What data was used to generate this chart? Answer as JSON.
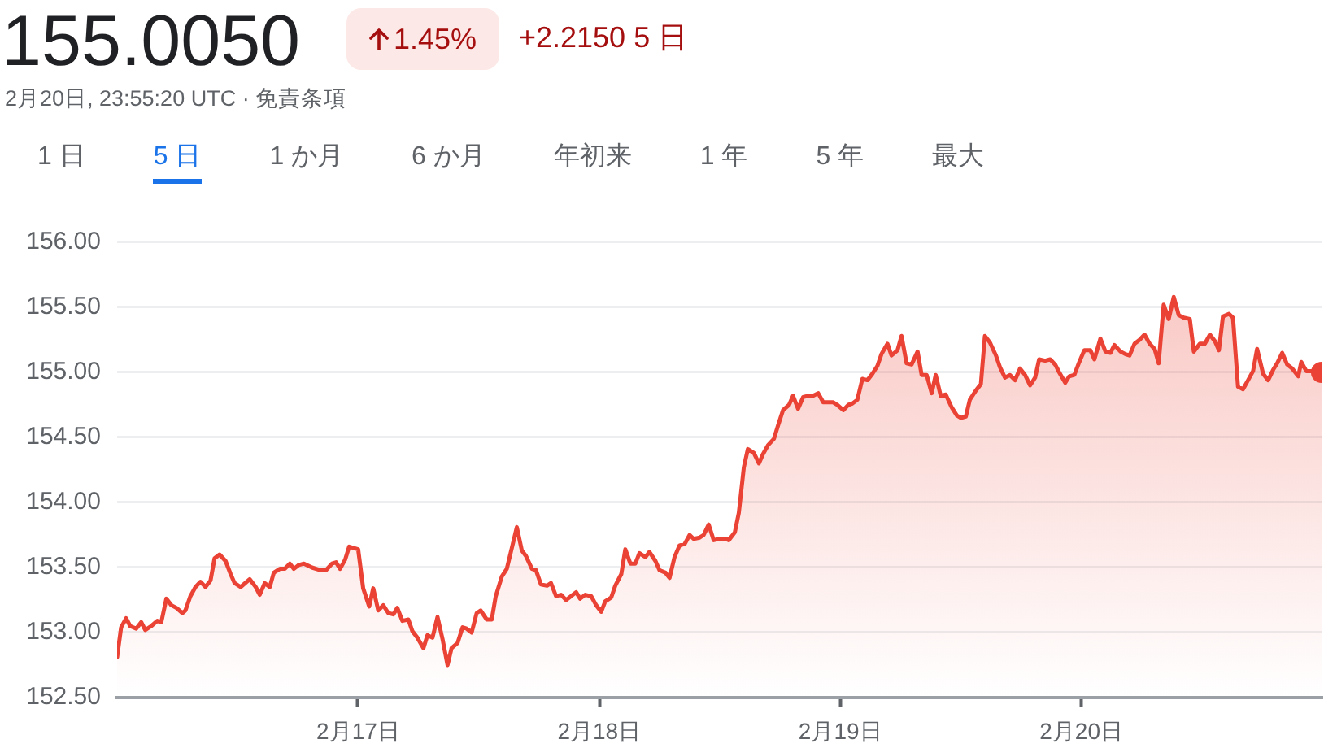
{
  "chart_data": {
    "type": "area",
    "title": "155.0050",
    "subtitle": "2月20日, 23:55:20 UTC · 免責条項",
    "annotations": [
      "1.45%",
      "+2.2150 5 日",
      "1 日",
      "5 日",
      "1 か月",
      "6 か月",
      "年初来",
      "1 年",
      "5 年",
      "最大"
    ],
    "x": [
      "--02-16T00:00",
      "--02-16T00:24",
      "--02-16T00:54",
      "--02-16T01:18",
      "--02-16T01:54",
      "--02-16T02:24",
      "--02-16T02:48",
      "--02-16T03:24",
      "--02-16T04:00",
      "--02-16T04:24",
      "--02-16T04:54",
      "--02-16T05:24",
      "--02-16T05:54",
      "--02-16T06:30",
      "--02-16T06:48",
      "--02-16T07:18",
      "--02-16T07:48",
      "--02-16T08:18",
      "--02-16T08:48",
      "--02-16T09:18",
      "--02-16T09:42",
      "--02-16T10:12",
      "--02-16T10:48",
      "--02-16T11:18",
      "--02-16T11:42",
      "--02-16T12:18",
      "--02-16T13:12",
      "--02-16T13:48",
      "--02-16T14:12",
      "--02-16T14:42",
      "--02-16T15:12",
      "--02-16T15:36",
      "--02-16T16:12",
      "--02-16T16:42",
      "--02-16T17:12",
      "--02-16T17:36",
      "--02-16T18:06",
      "--02-16T18:36",
      "--02-16T19:24",
      "--02-16T20:12",
      "--02-16T20:48",
      "--02-16T21:24",
      "--02-16T21:48",
      "--02-16T22:12",
      "--02-16T22:42",
      "--02-16T23:06",
      "--02-17T00:00",
      "--02-17T00:30",
      "--02-17T01:06",
      "--02-17T01:30",
      "--02-17T02:00",
      "--02-17T02:30",
      "--02-17T03:00",
      "--02-17T03:30",
      "--02-17T03:54",
      "--02-17T04:24",
      "--02-17T05:00",
      "--02-17T05:24",
      "--02-17T05:54",
      "--02-17T06:30",
      "--02-17T06:54",
      "--02-17T07:24",
      "--02-17T07:54",
      "--02-17T08:24",
      "--02-17T08:54",
      "--02-17T09:18",
      "--02-17T09:54",
      "--02-17T10:24",
      "--02-17T10:48",
      "--02-17T11:18",
      "--02-17T11:48",
      "--02-17T12:12",
      "--02-17T12:48",
      "--02-17T13:18",
      "--02-17T13:42",
      "--02-17T14:18",
      "--02-17T14:48",
      "--02-17T15:18",
      "--02-17T15:48",
      "--02-17T16:18",
      "--02-17T16:42",
      "--02-17T17:18",
      "--02-17T17:42",
      "--02-17T18:12",
      "--02-17T18:48",
      "--02-17T19:12",
      "--02-17T19:42",
      "--02-17T20:12",
      "--02-17T20:42",
      "--02-17T21:12",
      "--02-17T21:42",
      "--02-17T22:06",
      "--02-17T22:36",
      "--02-17T23:12",
      "--02-17T23:42",
      "--02-18T00:12",
      "--02-18T00:36",
      "--02-18T01:12",
      "--02-18T01:36",
      "--02-18T02:12",
      "--02-18T02:36",
      "--02-18T03:06",
      "--02-18T03:36",
      "--02-18T04:00",
      "--02-18T04:36",
      "--02-18T05:00",
      "--02-18T05:36",
      "--02-18T06:00",
      "--02-18T06:36",
      "--02-18T07:00",
      "--02-18T07:30",
      "--02-18T08:00",
      "--02-18T08:30",
      "--02-18T09:00",
      "--02-18T09:24",
      "--02-18T10:00",
      "--02-18T10:24",
      "--02-18T10:54",
      "--02-18T11:24",
      "--02-18T12:00",
      "--02-18T12:36",
      "--02-18T12:54",
      "--02-18T13:30",
      "--02-18T13:54",
      "--02-18T14:24",
      "--02-18T14:48",
      "--02-18T15:24",
      "--02-18T15:54",
      "--02-18T16:18",
      "--02-18T16:48",
      "--02-18T17:24",
      "--02-18T17:48",
      "--02-18T18:18",
      "--02-18T18:54",
      "--02-18T19:18",
      "--02-18T19:48",
      "--02-18T20:18",
      "--02-18T20:48",
      "--02-18T21:18",
      "--02-18T21:48",
      "--02-18T22:18",
      "--02-18T22:48",
      "--02-18T23:18",
      "--02-18T23:42",
      "--02-19T00:18",
      "--02-19T00:48",
      "--02-19T01:12",
      "--02-19T01:42",
      "--02-19T02:12",
      "--02-19T02:42",
      "--02-19T03:12",
      "--02-19T03:42",
      "--02-19T04:06",
      "--02-19T04:42",
      "--02-19T05:06",
      "--02-19T05:42",
      "--02-19T06:06",
      "--02-19T06:36",
      "--02-19T07:06",
      "--02-19T07:42",
      "--02-19T08:06",
      "--02-19T08:36",
      "--02-19T09:06",
      "--02-19T09:30",
      "--02-19T10:00",
      "--02-19T10:30",
      "--02-19T11:06",
      "--02-19T11:36",
      "--02-19T12:00",
      "--02-19T12:30",
      "--02-19T12:54",
      "--02-19T13:30",
      "--02-19T14:00",
      "--02-19T14:24",
      "--02-19T14:54",
      "--02-19T15:30",
      "--02-19T15:54",
      "--02-19T16:24",
      "--02-19T16:54",
      "--02-19T17:24",
      "--02-19T17:54",
      "--02-19T18:24",
      "--02-19T18:54",
      "--02-19T19:24",
      "--02-19T19:48",
      "--02-19T20:24",
      "--02-19T20:54",
      "--02-19T21:24",
      "--02-19T21:48",
      "--02-19T22:24",
      "--02-19T22:48",
      "--02-19T23:18",
      "--02-19T23:48",
      "--02-20T00:18",
      "--02-20T00:54",
      "--02-20T01:18",
      "--02-20T01:54",
      "--02-20T02:24",
      "--02-20T02:54",
      "--02-20T03:18",
      "--02-20T03:54",
      "--02-20T04:24",
      "--02-20T04:48",
      "--02-20T05:18",
      "--02-20T05:48",
      "--02-20T06:18",
      "--02-20T06:48",
      "--02-20T07:18",
      "--02-20T07:42",
      "--02-20T08:12",
      "--02-20T08:42",
      "--02-20T09:12",
      "--02-20T09:42",
      "--02-20T10:12",
      "--02-20T10:48",
      "--02-20T11:12",
      "--02-20T11:48",
      "--02-20T12:18",
      "--02-20T12:48",
      "--02-20T13:18",
      "--02-20T13:42",
      "--02-20T14:06",
      "--02-20T14:42",
      "--02-20T15:06",
      "--02-20T15:36",
      "--02-20T16:06",
      "--02-20T16:36",
      "--02-20T17:06",
      "--02-20T17:30",
      "--02-20T18:06",
      "--02-20T18:36",
      "--02-20T19:06",
      "--02-20T19:30",
      "--02-20T20:00",
      "--02-20T20:30",
      "--02-20T21:00",
      "--02-20T21:36",
      "--02-20T21:54",
      "--02-20T22:24",
      "--02-20T22:54",
      "--02-20T23:55"
    ],
    "xlim": [
      "--02-16",
      "--02-21"
    ],
    "xticks": [
      {
        "value": "--02-17",
        "label": "2月17日"
      },
      {
        "value": "--02-18",
        "label": "2月18日"
      },
      {
        "value": "--02-19",
        "label": "2月19日"
      },
      {
        "value": "--02-20",
        "label": "2月20日"
      }
    ],
    "ylim": [
      152.5,
      156
    ],
    "yticks": [
      {
        "value": 152.5,
        "label": "152.50"
      },
      {
        "value": 153,
        "label": "153.00"
      },
      {
        "value": 153.5,
        "label": "153.50"
      },
      {
        "value": 154,
        "label": "154.00"
      },
      {
        "value": 154.5,
        "label": "154.50"
      },
      {
        "value": 155,
        "label": "155.00"
      },
      {
        "value": 155.5,
        "label": "155.50"
      },
      {
        "value": 156,
        "label": "156.00"
      }
    ],
    "grid": "y",
    "series": [
      {
        "color": "#ea4335",
        "marker": "none",
        "values": [
          152.81,
          153.04,
          153.11,
          153.05,
          153.03,
          153.08,
          153.02,
          153.05,
          153.09,
          153.08,
          153.26,
          153.21,
          153.19,
          153.15,
          153.17,
          153.28,
          153.35,
          153.39,
          153.35,
          153.4,
          153.57,
          153.6,
          153.55,
          153.45,
          153.38,
          153.35,
          153.41,
          153.35,
          153.29,
          153.38,
          153.35,
          153.46,
          153.49,
          153.49,
          153.53,
          153.49,
          153.52,
          153.53,
          153.5,
          153.48,
          153.48,
          153.53,
          153.54,
          153.49,
          153.56,
          153.66,
          153.64,
          153.34,
          153.2,
          153.34,
          153.17,
          153.21,
          153.15,
          153.14,
          153.19,
          153.09,
          153.1,
          153.01,
          152.96,
          152.88,
          152.98,
          152.96,
          153.12,
          152.95,
          152.75,
          152.88,
          152.92,
          153.04,
          153.03,
          153.0,
          153.15,
          153.17,
          153.1,
          153.1,
          153.28,
          153.43,
          153.49,
          153.65,
          153.81,
          153.63,
          153.59,
          153.49,
          153.48,
          153.37,
          153.36,
          153.38,
          153.28,
          153.29,
          153.25,
          153.28,
          153.31,
          153.26,
          153.29,
          153.28,
          153.21,
          153.16,
          153.24,
          153.27,
          153.36,
          153.45,
          153.64,
          153.53,
          153.53,
          153.61,
          153.58,
          153.62,
          153.55,
          153.48,
          153.46,
          153.42,
          153.58,
          153.67,
          153.68,
          153.75,
          153.72,
          153.73,
          153.75,
          153.83,
          153.71,
          153.72,
          153.72,
          153.71,
          153.77,
          153.92,
          154.27,
          154.41,
          154.38,
          154.3,
          154.37,
          154.44,
          154.49,
          154.59,
          154.71,
          154.75,
          154.82,
          154.72,
          154.81,
          154.82,
          154.82,
          154.84,
          154.77,
          154.77,
          154.77,
          154.75,
          154.71,
          154.75,
          154.76,
          154.79,
          154.95,
          154.94,
          154.99,
          155.05,
          155.14,
          155.22,
          155.13,
          155.17,
          155.28,
          155.07,
          155.06,
          155.16,
          154.98,
          154.98,
          154.84,
          154.98,
          154.82,
          154.83,
          154.73,
          154.67,
          154.65,
          154.66,
          154.79,
          154.86,
          154.91,
          155.28,
          155.23,
          155.13,
          155.04,
          154.96,
          154.98,
          154.94,
          155.03,
          154.98,
          154.9,
          154.96,
          155.1,
          155.09,
          155.1,
          155.06,
          155.0,
          154.92,
          154.97,
          154.98,
          155.08,
          155.17,
          155.17,
          155.1,
          155.26,
          155.16,
          155.15,
          155.21,
          155.16,
          155.14,
          155.13,
          155.22,
          155.25,
          155.29,
          155.22,
          155.18,
          155.07,
          155.52,
          155.41,
          155.58,
          155.44,
          155.42,
          155.41,
          155.16,
          155.22,
          155.22,
          155.29,
          155.24,
          155.17,
          155.43,
          155.45,
          155.42,
          154.89,
          154.87,
          154.94,
          155.01,
          155.18,
          154.99,
          154.94,
          155.02,
          155.07,
          155.15,
          155.06,
          155.03,
          154.97,
          155.08,
          155.01,
          155.01,
          155.0
        ]
      },
      {
        "type": "scatter",
        "color": "#ea4335",
        "marker": "circle",
        "x": [
          "--02-20T23:55"
        ],
        "values": [
          155.0
        ]
      }
    ]
  }
}
